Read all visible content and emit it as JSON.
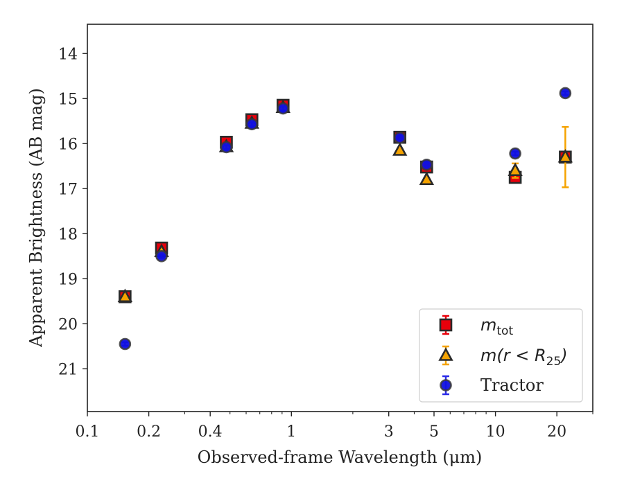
{
  "chart_data": {
    "type": "scatter",
    "xlabel": "Observed-frame Wavelength (μm)",
    "ylabel": "Apparent Brightness (AB mag)",
    "xscale": "log",
    "xlim": [
      0.1,
      30
    ],
    "ylim": [
      21.95,
      13.35
    ],
    "y_inverted": true,
    "x_ticks": [
      {
        "value": 0.1,
        "label": "0.1"
      },
      {
        "value": 0.2,
        "label": "0.2"
      },
      {
        "value": 0.4,
        "label": "0.4"
      },
      {
        "value": 1,
        "label": "1"
      },
      {
        "value": 3,
        "label": "3"
      },
      {
        "value": 5,
        "label": "5"
      },
      {
        "value": 10,
        "label": "10"
      },
      {
        "value": 20,
        "label": "20"
      }
    ],
    "x_minor_ticks": [
      0.3,
      0.5,
      0.6,
      0.7,
      0.8,
      0.9,
      2,
      4,
      6,
      7,
      8,
      9,
      30
    ],
    "y_ticks": [
      14,
      15,
      16,
      17,
      18,
      19,
      20,
      21
    ],
    "legend_position": "lower-right",
    "series": [
      {
        "name": "m_tot",
        "legend_base": "m",
        "legend_sub": "tot",
        "marker": "square",
        "face_color": "#e8000b",
        "edge_color": "#2a2a2a",
        "error_color": "#e8000b",
        "points": [
          {
            "x": 0.153,
            "y": 19.4,
            "err": 0.05
          },
          {
            "x": 0.231,
            "y": 18.32,
            "err": 0.05
          },
          {
            "x": 0.48,
            "y": 15.97,
            "err": 0.05
          },
          {
            "x": 0.64,
            "y": 15.47,
            "err": 0.05
          },
          {
            "x": 0.91,
            "y": 15.15,
            "err": 0.05
          },
          {
            "x": 3.4,
            "y": 15.86,
            "err": 0.05
          },
          {
            "x": 4.6,
            "y": 16.52,
            "err": 0.05
          },
          {
            "x": 12.5,
            "y": 16.75,
            "err": 0.05
          },
          {
            "x": 22,
            "y": 16.3,
            "err": 0.05
          }
        ]
      },
      {
        "name": "m(r < R_25)",
        "legend_base": "m(r < R",
        "legend_sub": "25",
        "legend_tail": ")",
        "marker": "triangle",
        "face_color": "#f5a300",
        "edge_color": "#2a2a2a",
        "error_color": "#f5a300",
        "points": [
          {
            "x": 0.153,
            "y": 19.4,
            "err": 0.03
          },
          {
            "x": 0.231,
            "y": 18.4,
            "err": 0.03
          },
          {
            "x": 0.48,
            "y": 16.07,
            "err": 0.03
          },
          {
            "x": 0.64,
            "y": 15.55,
            "err": 0.03
          },
          {
            "x": 0.91,
            "y": 15.2,
            "err": 0.03
          },
          {
            "x": 3.4,
            "y": 16.15,
            "err": 0.03
          },
          {
            "x": 4.6,
            "y": 16.8,
            "err": 0.03
          },
          {
            "x": 12.5,
            "y": 16.6,
            "err": 0.16
          },
          {
            "x": 22,
            "y": 16.3,
            "err": 0.67
          }
        ]
      },
      {
        "name": "Tractor",
        "marker": "circle",
        "face_color": "#1010e0",
        "edge_color": "#3a3a3a",
        "error_color": "#2a2ae8",
        "points": [
          {
            "x": 0.153,
            "y": 20.45,
            "err": 0.04
          },
          {
            "x": 0.231,
            "y": 18.5,
            "err": 0.04
          },
          {
            "x": 0.48,
            "y": 16.08,
            "err": 0.04
          },
          {
            "x": 0.64,
            "y": 15.57,
            "err": 0.04
          },
          {
            "x": 0.91,
            "y": 15.22,
            "err": 0.04
          },
          {
            "x": 3.4,
            "y": 15.87,
            "err": 0.04
          },
          {
            "x": 4.6,
            "y": 16.47,
            "err": 0.04
          },
          {
            "x": 12.5,
            "y": 16.22,
            "err": 0.04
          },
          {
            "x": 22,
            "y": 14.88,
            "err": 0.04
          }
        ]
      }
    ]
  }
}
